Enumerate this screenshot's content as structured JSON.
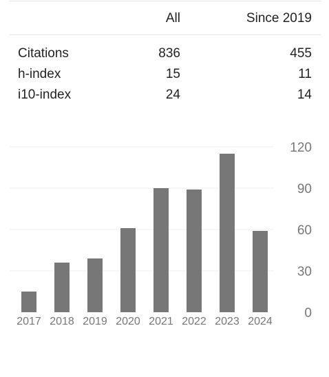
{
  "table": {
    "headers": [
      "",
      "All",
      "Since 2019"
    ],
    "rows": [
      {
        "label": "Citations",
        "all": "836",
        "since": "455"
      },
      {
        "label": "h-index",
        "all": "15",
        "since": "11"
      },
      {
        "label": "i10-index",
        "all": "24",
        "since": "14"
      }
    ]
  },
  "colors": {
    "bar": "#777777",
    "grid": "#eeeeee",
    "axis_label": "#777777"
  },
  "chart_data": {
    "type": "bar",
    "categories": [
      "2017",
      "2018",
      "2019",
      "2020",
      "2021",
      "2022",
      "2023",
      "2024"
    ],
    "values": [
      15,
      36,
      39,
      61,
      90,
      89,
      115,
      59
    ],
    "yticks": [
      0,
      30,
      60,
      90,
      120
    ],
    "ylim": [
      0,
      120
    ],
    "grid": true,
    "y_axis_side": "right",
    "title": "",
    "xlabel": "",
    "ylabel": ""
  }
}
